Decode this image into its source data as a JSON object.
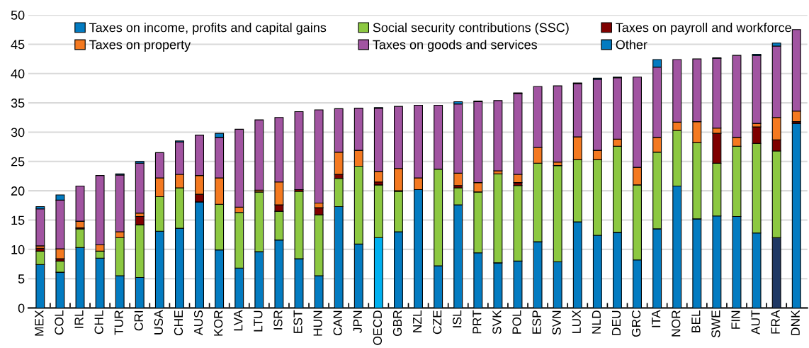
{
  "chart_data": {
    "type": "bar",
    "stacked": true,
    "categories": [
      "MEX",
      "COL",
      "IRL",
      "CHL",
      "TUR",
      "CRI",
      "USA",
      "CHE",
      "AUS",
      "KOR",
      "LVA",
      "LTU",
      "ISR",
      "EST",
      "HUN",
      "CAN",
      "JPN",
      "OECD",
      "GBR",
      "NZL",
      "CZE",
      "ISL",
      "PRT",
      "SVK",
      "POL",
      "ESP",
      "SVN",
      "LUX",
      "NLD",
      "DEU",
      "GRC",
      "ITA",
      "NOR",
      "BEL",
      "SWE",
      "FIN",
      "AUT",
      "FRA",
      "DNK"
    ],
    "series": [
      {
        "name": "Taxes on income, profits and capital gains",
        "color": "#037bc1",
        "colors": [
          "#037bc1",
          "#037bc1",
          "#037bc1",
          "#037bc1",
          "#037bc1",
          "#037bc1",
          "#037bc1",
          "#037bc1",
          "#037bc1",
          "#037bc1",
          "#037bc1",
          "#037bc1",
          "#037bc1",
          "#037bc1",
          "#037bc1",
          "#037bc1",
          "#037bc1",
          "#00b0f0",
          "#037bc1",
          "#037bc1",
          "#037bc1",
          "#037bc1",
          "#037bc1",
          "#037bc1",
          "#037bc1",
          "#037bc1",
          "#037bc1",
          "#037bc1",
          "#037bc1",
          "#037bc1",
          "#037bc1",
          "#037bc1",
          "#037bc1",
          "#037bc1",
          "#037bc1",
          "#037bc1",
          "#037bc1",
          "#1f3864",
          "#037bc1"
        ],
        "values": [
          7.4,
          6.1,
          10.3,
          8.5,
          5.5,
          5.2,
          13.1,
          13.6,
          18.1,
          9.9,
          6.8,
          9.6,
          11.6,
          8.4,
          5.5,
          17.3,
          10.9,
          12.0,
          13.0,
          20.2,
          7.2,
          17.6,
          9.4,
          7.7,
          8.0,
          11.3,
          7.9,
          14.7,
          12.4,
          12.9,
          8.2,
          13.5,
          20.8,
          15.2,
          15.7,
          15.6,
          12.8,
          12.0,
          31.5
        ]
      },
      {
        "name": "Social security contributions (SSC)",
        "color": "#8cc841",
        "values": [
          2.3,
          1.9,
          3.2,
          1.2,
          6.5,
          9.0,
          5.9,
          6.9,
          null,
          7.8,
          9.5,
          10.2,
          4.9,
          11.5,
          10.4,
          4.8,
          13.3,
          9.0,
          6.9,
          null,
          16.5,
          2.9,
          10.4,
          15.2,
          12.9,
          13.4,
          16.4,
          10.6,
          12.9,
          14.7,
          12.8,
          13.1,
          9.5,
          13.0,
          9.0,
          12.0,
          15.3,
          14.8,
          null
        ]
      },
      {
        "name": "Taxes on payroll and workforce",
        "color": "#7f0000",
        "values": [
          0.5,
          0.4,
          0.2,
          null,
          null,
          1.4,
          null,
          null,
          1.3,
          null,
          null,
          null,
          1.1,
          0.3,
          1.2,
          0.7,
          null,
          0.5,
          0.1,
          null,
          null,
          0.4,
          null,
          null,
          0.5,
          null,
          null,
          null,
          null,
          null,
          null,
          null,
          null,
          null,
          5.1,
          null,
          2.8,
          1.9,
          0.3
        ]
      },
      {
        "name": "Taxes on property",
        "color": "#f47920",
        "values": [
          0.4,
          1.7,
          1.1,
          1.1,
          1.0,
          0.6,
          3.2,
          2.3,
          3.2,
          4.5,
          0.9,
          0.3,
          3.9,
          null,
          0.8,
          3.8,
          2.7,
          1.8,
          3.8,
          2.0,
          null,
          2.1,
          1.6,
          0.5,
          1.4,
          2.7,
          0.6,
          3.9,
          1.6,
          1.2,
          3.0,
          2.5,
          1.4,
          3.6,
          0.9,
          1.5,
          0.6,
          3.8,
          1.8
        ]
      },
      {
        "name": "Taxes on goods and services",
        "color": "#a154a1",
        "values": [
          6.3,
          8.3,
          6.0,
          11.8,
          9.7,
          8.5,
          4.3,
          5.5,
          6.9,
          6.9,
          13.3,
          12.0,
          11.0,
          13.3,
          15.9,
          7.4,
          7.2,
          10.8,
          10.6,
          12.4,
          10.9,
          11.8,
          13.8,
          12.0,
          13.8,
          10.4,
          13.0,
          9.1,
          12.1,
          10.5,
          15.4,
          12.0,
          10.7,
          10.7,
          11.9,
          14.0,
          11.6,
          12.2,
          13.9
        ]
      },
      {
        "name": "Other",
        "color": "#037bc1",
        "values": [
          0.4,
          0.9,
          null,
          null,
          0.2,
          0.3,
          null,
          0.2,
          null,
          0.7,
          null,
          null,
          null,
          null,
          null,
          null,
          null,
          0.1,
          null,
          null,
          null,
          0.4,
          0.1,
          null,
          0.1,
          null,
          null,
          0.1,
          0.2,
          0.1,
          null,
          1.3,
          null,
          null,
          0.1,
          null,
          0.2,
          0.5,
          null
        ]
      }
    ],
    "ylim": [
      0,
      50
    ],
    "yticks": [
      0,
      5,
      10,
      15,
      20,
      25,
      30,
      35,
      40,
      45,
      50
    ],
    "grid": "y",
    "legend": "top"
  }
}
